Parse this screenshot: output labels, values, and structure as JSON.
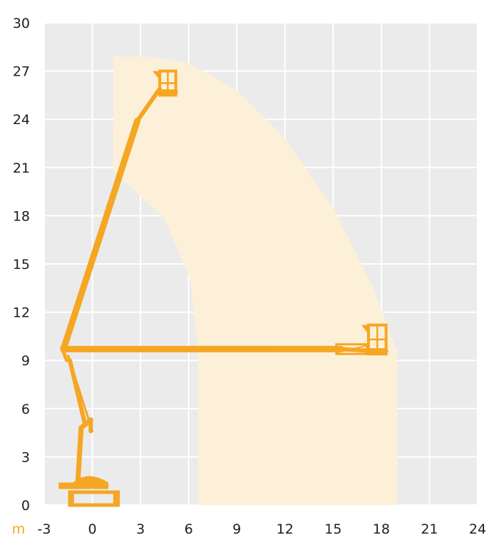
{
  "chart_data": {
    "type": "area",
    "title": "",
    "xlabel": "",
    "ylabel": "",
    "unit_label": "m",
    "xlim": [
      -3,
      24
    ],
    "ylim": [
      0,
      30
    ],
    "x_ticks": [
      "-3",
      "0",
      "3",
      "6",
      "9",
      "12",
      "15",
      "18",
      "21",
      "24"
    ],
    "y_ticks": [
      "0",
      "3",
      "6",
      "9",
      "12",
      "15",
      "18",
      "21",
      "24",
      "27",
      "30"
    ],
    "grid": true,
    "legend": "none",
    "series": [
      {
        "kind": "working-envelope",
        "outer": [
          [
            1.3,
            27.9
          ],
          [
            3.5,
            27.9
          ],
          [
            6,
            27.5
          ],
          [
            9,
            25.8
          ],
          [
            12,
            22.8
          ],
          [
            15,
            18.5
          ],
          [
            17.5,
            13.5
          ],
          [
            19,
            9.5
          ],
          [
            19,
            0
          ]
        ],
        "inner": [
          [
            6.6,
            0
          ],
          [
            6.6,
            9.5
          ],
          [
            6.1,
            14
          ],
          [
            4.5,
            17.8
          ],
          [
            1.3,
            20.8
          ]
        ]
      },
      {
        "kind": "lift-max-height",
        "boom": [
          [
            -1.8,
            9.7
          ],
          [
            2.8,
            23.9
          ],
          [
            4.2,
            25.9
          ]
        ],
        "basket": [
          4.2,
          25.5,
          5.2,
          27
        ]
      },
      {
        "kind": "lift-max-outreach",
        "boom": [
          [
            -1.8,
            9.7
          ],
          [
            15.5,
            9.7
          ],
          [
            17.2,
            9.6
          ]
        ],
        "basket": [
          17.2,
          9.4,
          18.3,
          11.2
        ]
      }
    ],
    "colors": {
      "background": "#ebebeb",
      "grid": "#ffffff",
      "envelope": "#fdf0d8",
      "machine": "#f5a623",
      "unit": "#f5a623",
      "tick_text": "#1f1f1f"
    }
  }
}
